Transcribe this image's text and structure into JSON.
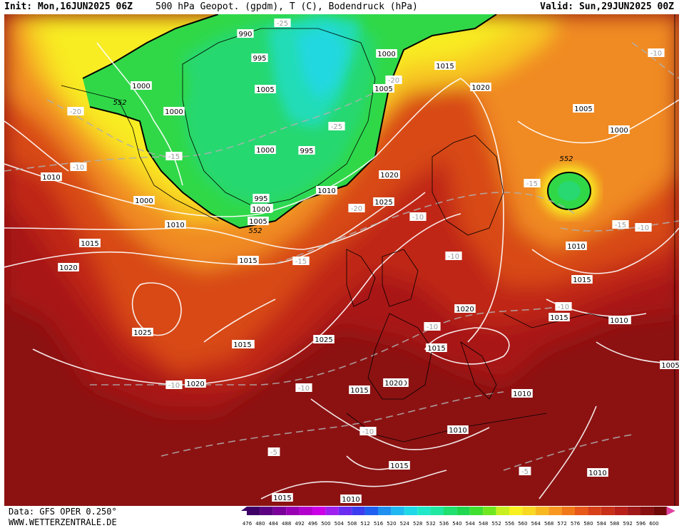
{
  "header": {
    "init": "Init: Mon,16JUN2025 06Z",
    "title": "500 hPa Geopot. (gpdm), T (C), Bodendruck (hPa)",
    "valid": "Valid: Sun,29JUN2025 00Z"
  },
  "footer": {
    "data_source": "Data: GFS OPER 0.250°",
    "website": "WWW.WETTERZENTRALE.DE"
  },
  "colorscale": {
    "ticks": [
      "476",
      "480",
      "484",
      "488",
      "492",
      "496",
      "500",
      "504",
      "508",
      "512",
      "516",
      "520",
      "524",
      "528",
      "532",
      "536",
      "540",
      "544",
      "548",
      "552",
      "556",
      "560",
      "564",
      "568",
      "572",
      "576",
      "580",
      "584",
      "588",
      "592",
      "596",
      "600"
    ],
    "colors": [
      "#3d0066",
      "#5a0080",
      "#7a0099",
      "#9900b3",
      "#b300cc",
      "#cc00e6",
      "#a020f0",
      "#6a2cf0",
      "#3c3cf0",
      "#2060f0",
      "#2090f0",
      "#20b8f0",
      "#20d8e8",
      "#20e8c8",
      "#20e8a0",
      "#20e070",
      "#20d850",
      "#40e030",
      "#70e820",
      "#c8f020",
      "#f8f020",
      "#f8d820",
      "#f8b820",
      "#f89820",
      "#f07818",
      "#e85818",
      "#d84018",
      "#c83018",
      "#b82018",
      "#a01818",
      "#881010",
      "#700808"
    ],
    "arrow_color": "#e040a0"
  },
  "pressure_labels": [
    {
      "text": "990"
    },
    {
      "text": "995"
    },
    {
      "text": "1000"
    },
    {
      "text": "1005"
    },
    {
      "text": "1000"
    },
    {
      "text": "995"
    },
    {
      "text": "1000"
    },
    {
      "text": "1000"
    },
    {
      "text": "1005"
    },
    {
      "text": "1015"
    },
    {
      "text": "1020"
    },
    {
      "text": "1005"
    },
    {
      "text": "1000"
    },
    {
      "text": "1005"
    },
    {
      "text": "1000"
    },
    {
      "text": "1010"
    },
    {
      "text": "1015"
    },
    {
      "text": "1010"
    },
    {
      "text": "1000"
    },
    {
      "text": "1010"
    },
    {
      "text": "1015"
    },
    {
      "text": "1020"
    },
    {
      "text": "995"
    },
    {
      "text": "1000"
    },
    {
      "text": "1005"
    },
    {
      "text": "1010"
    },
    {
      "text": "1015"
    },
    {
      "text": "1020"
    },
    {
      "text": "1025"
    },
    {
      "text": "1020"
    },
    {
      "text": "1010"
    },
    {
      "text": "1015"
    },
    {
      "text": "1015"
    },
    {
      "text": "1010"
    },
    {
      "text": "1025"
    },
    {
      "text": "1015"
    },
    {
      "text": "1025"
    },
    {
      "text": "1020"
    },
    {
      "text": "1015"
    },
    {
      "text": "1020"
    },
    {
      "text": "1015"
    },
    {
      "text": "1020"
    },
    {
      "text": "1015"
    },
    {
      "text": "1010"
    },
    {
      "text": "1010"
    },
    {
      "text": "1005"
    },
    {
      "text": "1010"
    },
    {
      "text": "1010"
    },
    {
      "text": "1015"
    },
    {
      "text": "1015"
    },
    {
      "text": "1010"
    }
  ],
  "temperature_labels": [
    {
      "text": "-25"
    },
    {
      "text": "-20"
    },
    {
      "text": "-25"
    },
    {
      "text": "-20"
    },
    {
      "text": "-15"
    },
    {
      "text": "-10"
    },
    {
      "text": "-20"
    },
    {
      "text": "-15"
    },
    {
      "text": "-10"
    },
    {
      "text": "-15"
    },
    {
      "text": "-10"
    },
    {
      "text": "-10"
    },
    {
      "text": "-10"
    },
    {
      "text": "-10"
    },
    {
      "text": "-10"
    },
    {
      "text": "-15"
    },
    {
      "text": "-10"
    },
    {
      "text": "-10"
    },
    {
      "text": "-10"
    },
    {
      "text": "-5"
    },
    {
      "text": "-5"
    },
    {
      "text": "-15"
    }
  ],
  "geopotential_labels": [
    {
      "text": "552"
    },
    {
      "text": "552"
    },
    {
      "text": "552"
    }
  ]
}
